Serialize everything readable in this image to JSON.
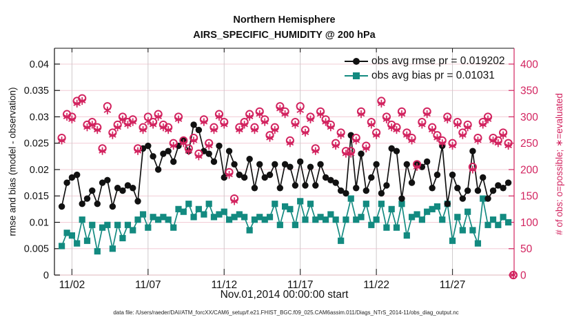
{
  "title": {
    "line1": "Northern Hemisphere",
    "line2": "AIRS_SPECIFIC_HUMIDITY @ 200 hPa"
  },
  "footer": {
    "data_file": "data file: /Users/raeder/DAI/ATM_forcXX/CAM6_setup/f.e21.FHIST_BGC.f09_025.CAM6assim.011/Diags_NTrS_2014-11/obs_diag_output.nc"
  },
  "chart_data": {
    "type": "line",
    "title": "Northern Hemisphere",
    "subtitle": "AIRS_SPECIFIC_HUMIDITY @ 200 hPa",
    "xlabel": "Nov.01,2014 00:00:00 start",
    "ylabel_left": "rmse and bias (model - observation)",
    "ylabel_right": "# of obs: o=possible; ∗=evaluated",
    "grid": true,
    "legend_position": "top-right-inside",
    "xlim_days": [
      0.85,
      31.05
    ],
    "ylim_left": [
      0,
      0.043
    ],
    "ylim_right": [
      0,
      430
    ],
    "xticks": [
      {
        "day": 2,
        "label": "11/02"
      },
      {
        "day": 7,
        "label": "11/07"
      },
      {
        "day": 12,
        "label": "11/12"
      },
      {
        "day": 17,
        "label": "11/17"
      },
      {
        "day": 22,
        "label": "11/22"
      },
      {
        "day": 27,
        "label": "11/27"
      }
    ],
    "yticks_left": [
      {
        "v": 0,
        "label": "0"
      },
      {
        "v": 0.005,
        "label": "0.005"
      },
      {
        "v": 0.01,
        "label": "0.01"
      },
      {
        "v": 0.015,
        "label": "0.015"
      },
      {
        "v": 0.02,
        "label": "0.02"
      },
      {
        "v": 0.025,
        "label": "0.025"
      },
      {
        "v": 0.03,
        "label": "0.03"
      },
      {
        "v": 0.035,
        "label": "0.035"
      },
      {
        "v": 0.04,
        "label": "0.04"
      }
    ],
    "yticks_right": [
      {
        "v": 0,
        "label": "0"
      },
      {
        "v": 50,
        "label": "50"
      },
      {
        "v": 100,
        "label": "100"
      },
      {
        "v": 150,
        "label": "150"
      },
      {
        "v": 200,
        "label": "200"
      },
      {
        "v": 250,
        "label": "250"
      },
      {
        "v": 300,
        "label": "300"
      },
      {
        "v": 350,
        "label": "350"
      },
      {
        "v": 400,
        "label": "400"
      }
    ],
    "legend": [
      {
        "label": "obs avg rmse pr = 0.019202",
        "color": "#111111",
        "marker": "circle"
      },
      {
        "label": "obs avg bias pr = 0.01031",
        "color": "#138a80",
        "marker": "square"
      }
    ],
    "colors": {
      "rmse": "#111111",
      "bias": "#138a80",
      "obs": "#d2235f",
      "grid_h": "#f2ccd5",
      "grid_v": "#cfc9cb",
      "spine_bottom": "#e8cdd2",
      "spine_top": "#111111",
      "spine_left": "#111111",
      "tick_x": "#333333"
    },
    "t_days": [
      1.33,
      1.67,
      2,
      2.33,
      2.67,
      3,
      3.33,
      3.67,
      4,
      4.33,
      4.67,
      5,
      5.33,
      5.67,
      6,
      6.33,
      6.67,
      7,
      7.33,
      7.67,
      8,
      8.33,
      8.67,
      9,
      9.33,
      9.67,
      10,
      10.33,
      10.67,
      11,
      11.33,
      11.67,
      12,
      12.33,
      12.67,
      13,
      13.33,
      13.67,
      14,
      14.33,
      14.67,
      15,
      15.33,
      15.67,
      16,
      16.33,
      16.67,
      17,
      17.33,
      17.67,
      18,
      18.33,
      18.67,
      19,
      19.33,
      19.67,
      20,
      20.33,
      20.67,
      21,
      21.33,
      21.67,
      22,
      22.33,
      22.67,
      23,
      23.33,
      23.67,
      24,
      24.33,
      24.67,
      25,
      25.33,
      25.67,
      26,
      26.33,
      26.67,
      27,
      27.33,
      27.67,
      28,
      28.33,
      28.67,
      29,
      29.33,
      29.67,
      30,
      30.33,
      30.67,
      31
    ],
    "series": [
      {
        "name": "obs avg rmse pr",
        "axis": "left",
        "marker": "filled-circle",
        "line": true,
        "values": [
          0.013,
          0.0175,
          0.0185,
          0.019,
          0.0135,
          0.0145,
          0.016,
          0.0135,
          0.0175,
          0.018,
          0.013,
          0.0165,
          0.016,
          0.017,
          0.0165,
          0.014,
          0.024,
          0.0245,
          0.0225,
          0.02,
          0.023,
          0.0235,
          0.0215,
          0.0245,
          0.0255,
          0.0235,
          0.0285,
          0.0275,
          0.0235,
          0.023,
          0.0215,
          0.0245,
          0.0185,
          0.0235,
          0.021,
          0.019,
          0.0185,
          0.022,
          0.0165,
          0.021,
          0.0185,
          0.019,
          0.021,
          0.0165,
          0.021,
          0.0205,
          0.017,
          0.0215,
          0.017,
          0.0205,
          0.017,
          0.021,
          0.0185,
          0.018,
          0.0175,
          0.016,
          0.0155,
          0.0265,
          0.0165,
          0.023,
          0.016,
          0.0185,
          0.021,
          0.0155,
          0.017,
          0.024,
          0.0235,
          0.0145,
          0.021,
          0.0175,
          0.021,
          0.0205,
          0.0215,
          0.0165,
          0.019,
          0.0245,
          0.0135,
          0.019,
          0.0165,
          0.0145,
          0.016,
          0.0235,
          0.016,
          0.0185,
          0.0145,
          0.016,
          0.017,
          0.0165,
          0.0175,
          null
        ]
      },
      {
        "name": "obs avg bias pr",
        "axis": "left",
        "marker": "filled-square",
        "line": true,
        "values": [
          0.0055,
          0.008,
          0.0075,
          0.006,
          0.0105,
          0.0065,
          0.0095,
          0.0045,
          0.009,
          0.0095,
          0.005,
          0.0095,
          0.007,
          0.0095,
          0.0085,
          0.0105,
          0.0115,
          0.009,
          0.011,
          0.0105,
          0.011,
          0.0105,
          0.009,
          0.0125,
          0.012,
          0.0135,
          0.011,
          0.0125,
          0.0115,
          0.0135,
          0.011,
          0.0115,
          0.012,
          0.0105,
          0.011,
          0.0115,
          0.011,
          0.0085,
          0.0105,
          0.011,
          0.0105,
          0.011,
          0.0135,
          0.0095,
          0.013,
          0.0125,
          0.0095,
          0.014,
          0.0105,
          0.0135,
          0.0105,
          0.011,
          0.0105,
          0.0115,
          0.0105,
          0.0065,
          0.0105,
          0.0145,
          0.0105,
          0.011,
          0.0135,
          0.0095,
          0.0105,
          0.0135,
          0.009,
          0.0125,
          0.009,
          0.0135,
          0.0075,
          0.011,
          0.0115,
          0.0105,
          0.012,
          0.0125,
          0.013,
          0.0105,
          0.0135,
          0.0065,
          0.011,
          0.0085,
          0.012,
          0.0085,
          0.006,
          0.0145,
          0.0095,
          0.0105,
          0.0095,
          0.011,
          0.01,
          null
        ]
      },
      {
        "name": "# of obs possible",
        "axis": "right",
        "marker": "open-circle",
        "line": false,
        "values": [
          260,
          305,
          300,
          330,
          335,
          285,
          290,
          280,
          240,
          320,
          270,
          285,
          300,
          290,
          295,
          240,
          280,
          300,
          290,
          305,
          285,
          280,
          250,
          300,
          255,
          240,
          260,
          230,
          295,
          250,
          280,
          305,
          290,
          195,
          145,
          280,
          290,
          305,
          280,
          310,
          295,
          265,
          280,
          320,
          310,
          255,
          290,
          320,
          275,
          300,
          240,
          310,
          295,
          285,
          250,
          270,
          235,
          235,
          260,
          310,
          245,
          290,
          270,
          330,
          300,
          285,
          280,
          310,
          270,
          260,
          210,
          290,
          310,
          280,
          265,
          255,
          300,
          250,
          290,
          270,
          285,
          205,
          260,
          290,
          300,
          260,
          255,
          270,
          250,
          0
        ]
      },
      {
        "name": "# of obs evaluated",
        "axis": "right",
        "marker": "asterisk",
        "line": false,
        "values": [
          255,
          300,
          295,
          325,
          330,
          280,
          285,
          275,
          235,
          312,
          265,
          280,
          295,
          285,
          290,
          235,
          275,
          292,
          285,
          300,
          280,
          275,
          245,
          295,
          250,
          235,
          255,
          225,
          290,
          245,
          275,
          300,
          285,
          190,
          140,
          275,
          285,
          300,
          275,
          305,
          290,
          260,
          275,
          315,
          305,
          250,
          285,
          312,
          270,
          295,
          235,
          305,
          290,
          280,
          245,
          265,
          230,
          230,
          255,
          305,
          240,
          285,
          265,
          325,
          295,
          280,
          275,
          305,
          265,
          255,
          205,
          285,
          305,
          275,
          260,
          250,
          295,
          245,
          285,
          265,
          280,
          200,
          255,
          285,
          295,
          255,
          250,
          265,
          245,
          0
        ]
      }
    ]
  }
}
